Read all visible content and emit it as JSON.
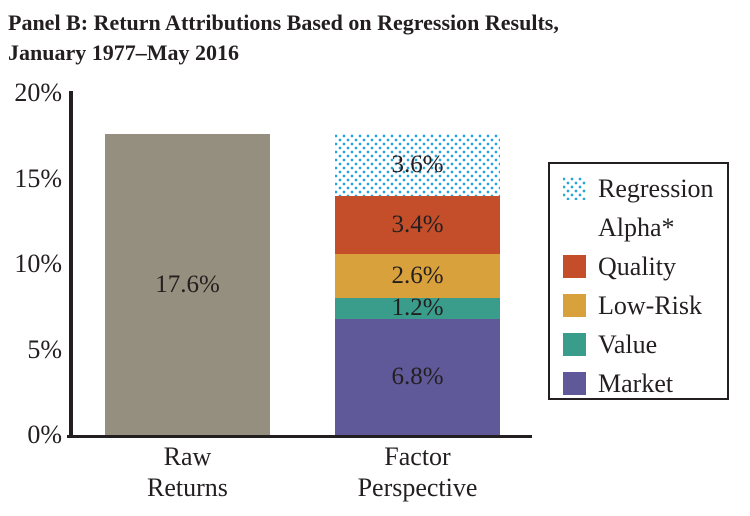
{
  "title": {
    "line1": "Panel B: Return Attributions Based on Regression Results,",
    "line2": "January 1977–May 2016"
  },
  "chart_data": {
    "type": "bar",
    "stacked": true,
    "title": "Panel B: Return Attributions Based on Regression Results, January 1977–May 2016",
    "unit": "%",
    "ylim": [
      0,
      20
    ],
    "yticks": [
      "0%",
      "5%",
      "10%",
      "15%",
      "20%"
    ],
    "ytick_values": [
      0,
      5,
      10,
      15,
      20
    ],
    "grid": false,
    "legend_position": "right",
    "categories": [
      "Raw Returns",
      "Factor Perspective"
    ],
    "bars": [
      {
        "category": "Raw Returns",
        "label_lines": [
          "Raw",
          "Returns"
        ],
        "segments": [
          {
            "name": "Raw Returns",
            "value": 17.6,
            "label": "17.6%",
            "color": "#948f7e",
            "pattern": "solid"
          }
        ]
      },
      {
        "category": "Factor Perspective",
        "label_lines": [
          "Factor",
          "Perspective"
        ],
        "segments": [
          {
            "name": "Market",
            "value": 6.8,
            "label": "6.8%",
            "color": "#5f5899",
            "pattern": "solid"
          },
          {
            "name": "Value",
            "value": 1.2,
            "label": "1.2%",
            "color": "#3a9d8c",
            "pattern": "solid"
          },
          {
            "name": "Low-Risk",
            "value": 2.6,
            "label": "2.6%",
            "color": "#d9a13c",
            "pattern": "solid"
          },
          {
            "name": "Quality",
            "value": 3.4,
            "label": "3.4%",
            "color": "#c44e29",
            "pattern": "solid"
          },
          {
            "name": "Regression Alpha*",
            "value": 3.6,
            "label": "3.6%",
            "color": "#29a3dc",
            "pattern": "dots"
          }
        ]
      }
    ],
    "legend": {
      "entries": [
        {
          "label_lines": [
            "Regression",
            "Alpha*"
          ],
          "color": "#29a3dc",
          "pattern": "dots"
        },
        {
          "label_lines": [
            "Quality"
          ],
          "color": "#c44e29",
          "pattern": "solid"
        },
        {
          "label_lines": [
            "Low-Risk"
          ],
          "color": "#d9a13c",
          "pattern": "solid"
        },
        {
          "label_lines": [
            "Value"
          ],
          "color": "#3a9d8c",
          "pattern": "solid"
        },
        {
          "label_lines": [
            "Market"
          ],
          "color": "#5f5899",
          "pattern": "solid"
        }
      ]
    },
    "colors": {
      "raw_returns_gray": "#948f7e",
      "market_purple": "#5f5899",
      "value_teal": "#3a9d8c",
      "low_risk_gold": "#d9a13c",
      "quality_red": "#c44e29",
      "alpha_dot_blue": "#29a3dc",
      "axis_black": "#231f20"
    }
  }
}
